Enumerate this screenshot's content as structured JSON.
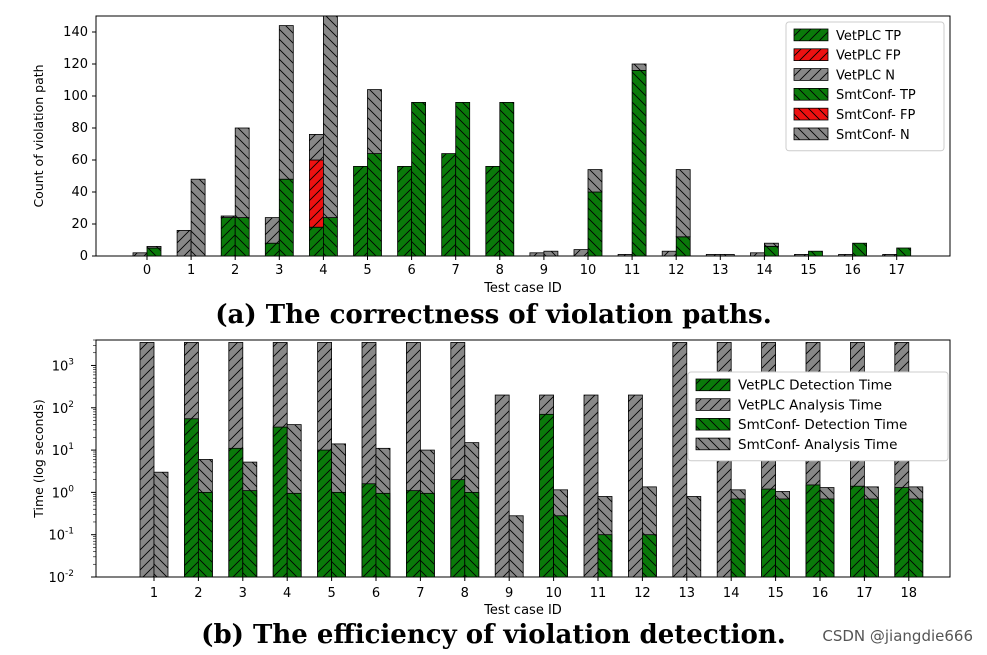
{
  "captions": {
    "a": "(a) The correctness of violation paths.",
    "b": "(b) The efficiency of violation detection."
  },
  "watermark": "CSDN @jiangdie666",
  "colors": {
    "green": "#0a7a0a",
    "red": "#ee1111",
    "gray": "#888888",
    "edge": "#000000"
  },
  "chart_data": [
    {
      "type": "bar",
      "stacked": true,
      "title": "",
      "xlabel": "Test case ID",
      "ylabel": "Count of violation path",
      "ylim": [
        0,
        150
      ],
      "yticks": [
        0,
        20,
        40,
        60,
        80,
        100,
        120,
        140
      ],
      "categories": [
        "0",
        "1",
        "2",
        "3",
        "4",
        "5",
        "6",
        "7",
        "8",
        "9",
        "10",
        "11",
        "12",
        "13",
        "14",
        "15",
        "16",
        "17"
      ],
      "legend_position": "top-right",
      "series": [
        {
          "name": "VetPLC TP",
          "group": "VetPLC",
          "color": "green",
          "hatch": "/",
          "values": [
            0,
            0,
            24,
            8,
            18,
            56,
            56,
            64,
            56,
            0,
            0,
            0,
            0,
            0,
            0,
            0,
            0,
            0
          ]
        },
        {
          "name": "VetPLC FP",
          "group": "VetPLC",
          "color": "red",
          "hatch": "/",
          "values": [
            0,
            0,
            0,
            0,
            42,
            0,
            0,
            0,
            0,
            0,
            0,
            0,
            0,
            0,
            0,
            0,
            0,
            0
          ]
        },
        {
          "name": "VetPLC N",
          "group": "VetPLC",
          "color": "gray",
          "hatch": "/",
          "values": [
            2,
            16,
            1,
            16,
            16,
            0,
            0,
            0,
            0,
            2,
            4,
            1,
            3,
            1,
            2,
            1,
            1,
            1
          ]
        },
        {
          "name": "SmtConf- TP",
          "group": "SmtConf",
          "color": "green",
          "hatch": "\\",
          "values": [
            5,
            0,
            24,
            48,
            24,
            64,
            96,
            96,
            96,
            0,
            40,
            116,
            12,
            0,
            6,
            3,
            8,
            5
          ]
        },
        {
          "name": "SmtConf- FP",
          "group": "SmtConf",
          "color": "red",
          "hatch": "\\",
          "values": [
            0,
            0,
            0,
            0,
            0,
            0,
            0,
            0,
            0,
            0,
            0,
            0,
            0,
            0,
            0,
            0,
            0,
            0
          ]
        },
        {
          "name": "SmtConf- N",
          "group": "SmtConf",
          "color": "gray",
          "hatch": "\\",
          "values": [
            1,
            48,
            56,
            96,
            130,
            40,
            0,
            0,
            0,
            3,
            14,
            4,
            42,
            1,
            2,
            0,
            0,
            0
          ]
        }
      ]
    },
    {
      "type": "bar",
      "stacked": true,
      "yscale": "log",
      "title": "",
      "xlabel": "Test case ID",
      "ylabel": "Time (log seconds)",
      "ylim": [
        0.01,
        4000
      ],
      "yticks": [
        "10^-2",
        "10^-1",
        "10^0",
        "10^1",
        "10^2",
        "10^3"
      ],
      "categories": [
        "1",
        "2",
        "3",
        "4",
        "5",
        "6",
        "7",
        "8",
        "9",
        "10",
        "11",
        "12",
        "13",
        "14",
        "15",
        "16",
        "17",
        "18"
      ],
      "legend_position": "center-right",
      "series": [
        {
          "name": "VetPLC Detection Time",
          "group": "VetPLC",
          "color": "green",
          "hatch": "/",
          "values": [
            0,
            55,
            11,
            35,
            10,
            1.6,
            1.1,
            2,
            0,
            70,
            0,
            0,
            0,
            0,
            1.2,
            1.5,
            1.4,
            1.3
          ]
        },
        {
          "name": "VetPLC Analysis Time",
          "group": "VetPLC",
          "color": "gray",
          "hatch": "/",
          "values": [
            3500,
            3500,
            3500,
            3500,
            3500,
            3500,
            3500,
            3500,
            200,
            200,
            200,
            200,
            3500,
            3500,
            3500,
            3500,
            3500,
            3500
          ]
        },
        {
          "name": "SmtConf- Detection Time",
          "group": "SmtConf",
          "color": "green",
          "hatch": "\\",
          "values": [
            0,
            1.0,
            1.1,
            0.95,
            1.0,
            0.95,
            0.95,
            1.0,
            0,
            0.28,
            0.1,
            0.1,
            0,
            0.7,
            0.7,
            0.7,
            0.7,
            0.7
          ]
        },
        {
          "name": "SmtConf- Analysis Time",
          "group": "SmtConf",
          "color": "gray",
          "hatch": "\\",
          "values": [
            3,
            6,
            5.2,
            40,
            14,
            11,
            10,
            15,
            0.28,
            1.15,
            0.8,
            1.35,
            0.8,
            1.15,
            1.05,
            1.3,
            1.35,
            1.35
          ]
        }
      ]
    }
  ]
}
